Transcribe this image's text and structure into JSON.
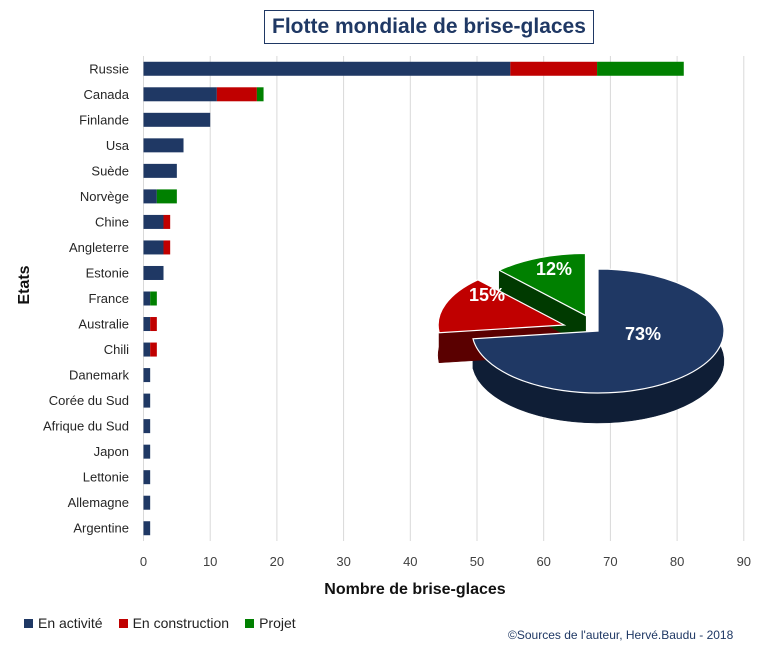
{
  "colors": {
    "active": "#1f3864",
    "construction": "#c00000",
    "project": "#008000"
  },
  "chart_data": [
    {
      "type": "bar",
      "orientation": "horizontal",
      "stacked": true,
      "title": "Flotte mondiale de brise-glaces",
      "xlabel": "Nombre de brise-glaces",
      "ylabel": "Etats",
      "xlim": [
        0,
        90
      ],
      "xticks": [
        0,
        10,
        20,
        30,
        40,
        50,
        60,
        70,
        80,
        90
      ],
      "grid": true,
      "legend_position": "bottom-left",
      "categories": [
        "Russie",
        "Canada",
        "Finlande",
        "Usa",
        "Suède",
        "Norvège",
        "Chine",
        "Angleterre",
        "Estonie",
        "France",
        "Australie",
        "Chili",
        "Danemark",
        "Corée du Sud",
        "Afrique du Sud",
        "Japon",
        "Lettonie",
        "Allemagne",
        "Argentine"
      ],
      "series": [
        {
          "name": "En activité",
          "values": [
            55,
            11,
            10,
            6,
            5,
            2,
            3,
            3,
            3,
            1,
            1,
            1,
            1,
            1,
            1,
            1,
            1,
            1,
            1
          ]
        },
        {
          "name": "En construction",
          "values": [
            13,
            6,
            0,
            0,
            0,
            0,
            1,
            1,
            0,
            0,
            1,
            1,
            0,
            0,
            0,
            0,
            0,
            0,
            0
          ]
        },
        {
          "name": "Projet",
          "values": [
            13,
            1,
            0,
            0,
            0,
            3,
            0,
            0,
            0,
            1,
            0,
            0,
            0,
            0,
            0,
            0,
            0,
            0,
            0
          ]
        }
      ]
    },
    {
      "type": "pie",
      "style": "3d-exploded",
      "labels": [
        "En activité",
        "En construction",
        "Projet"
      ],
      "values": [
        73,
        15,
        12
      ],
      "data_labels": [
        "73%",
        "15%",
        "12%"
      ]
    }
  ],
  "legend": [
    {
      "label": "En activité",
      "color": "#1f3864"
    },
    {
      "label": "En construction",
      "color": "#c00000"
    },
    {
      "label": "Projet",
      "color": "#008000"
    }
  ],
  "credit": "©Sources de l'auteur, Hervé.Baudu - 2018"
}
